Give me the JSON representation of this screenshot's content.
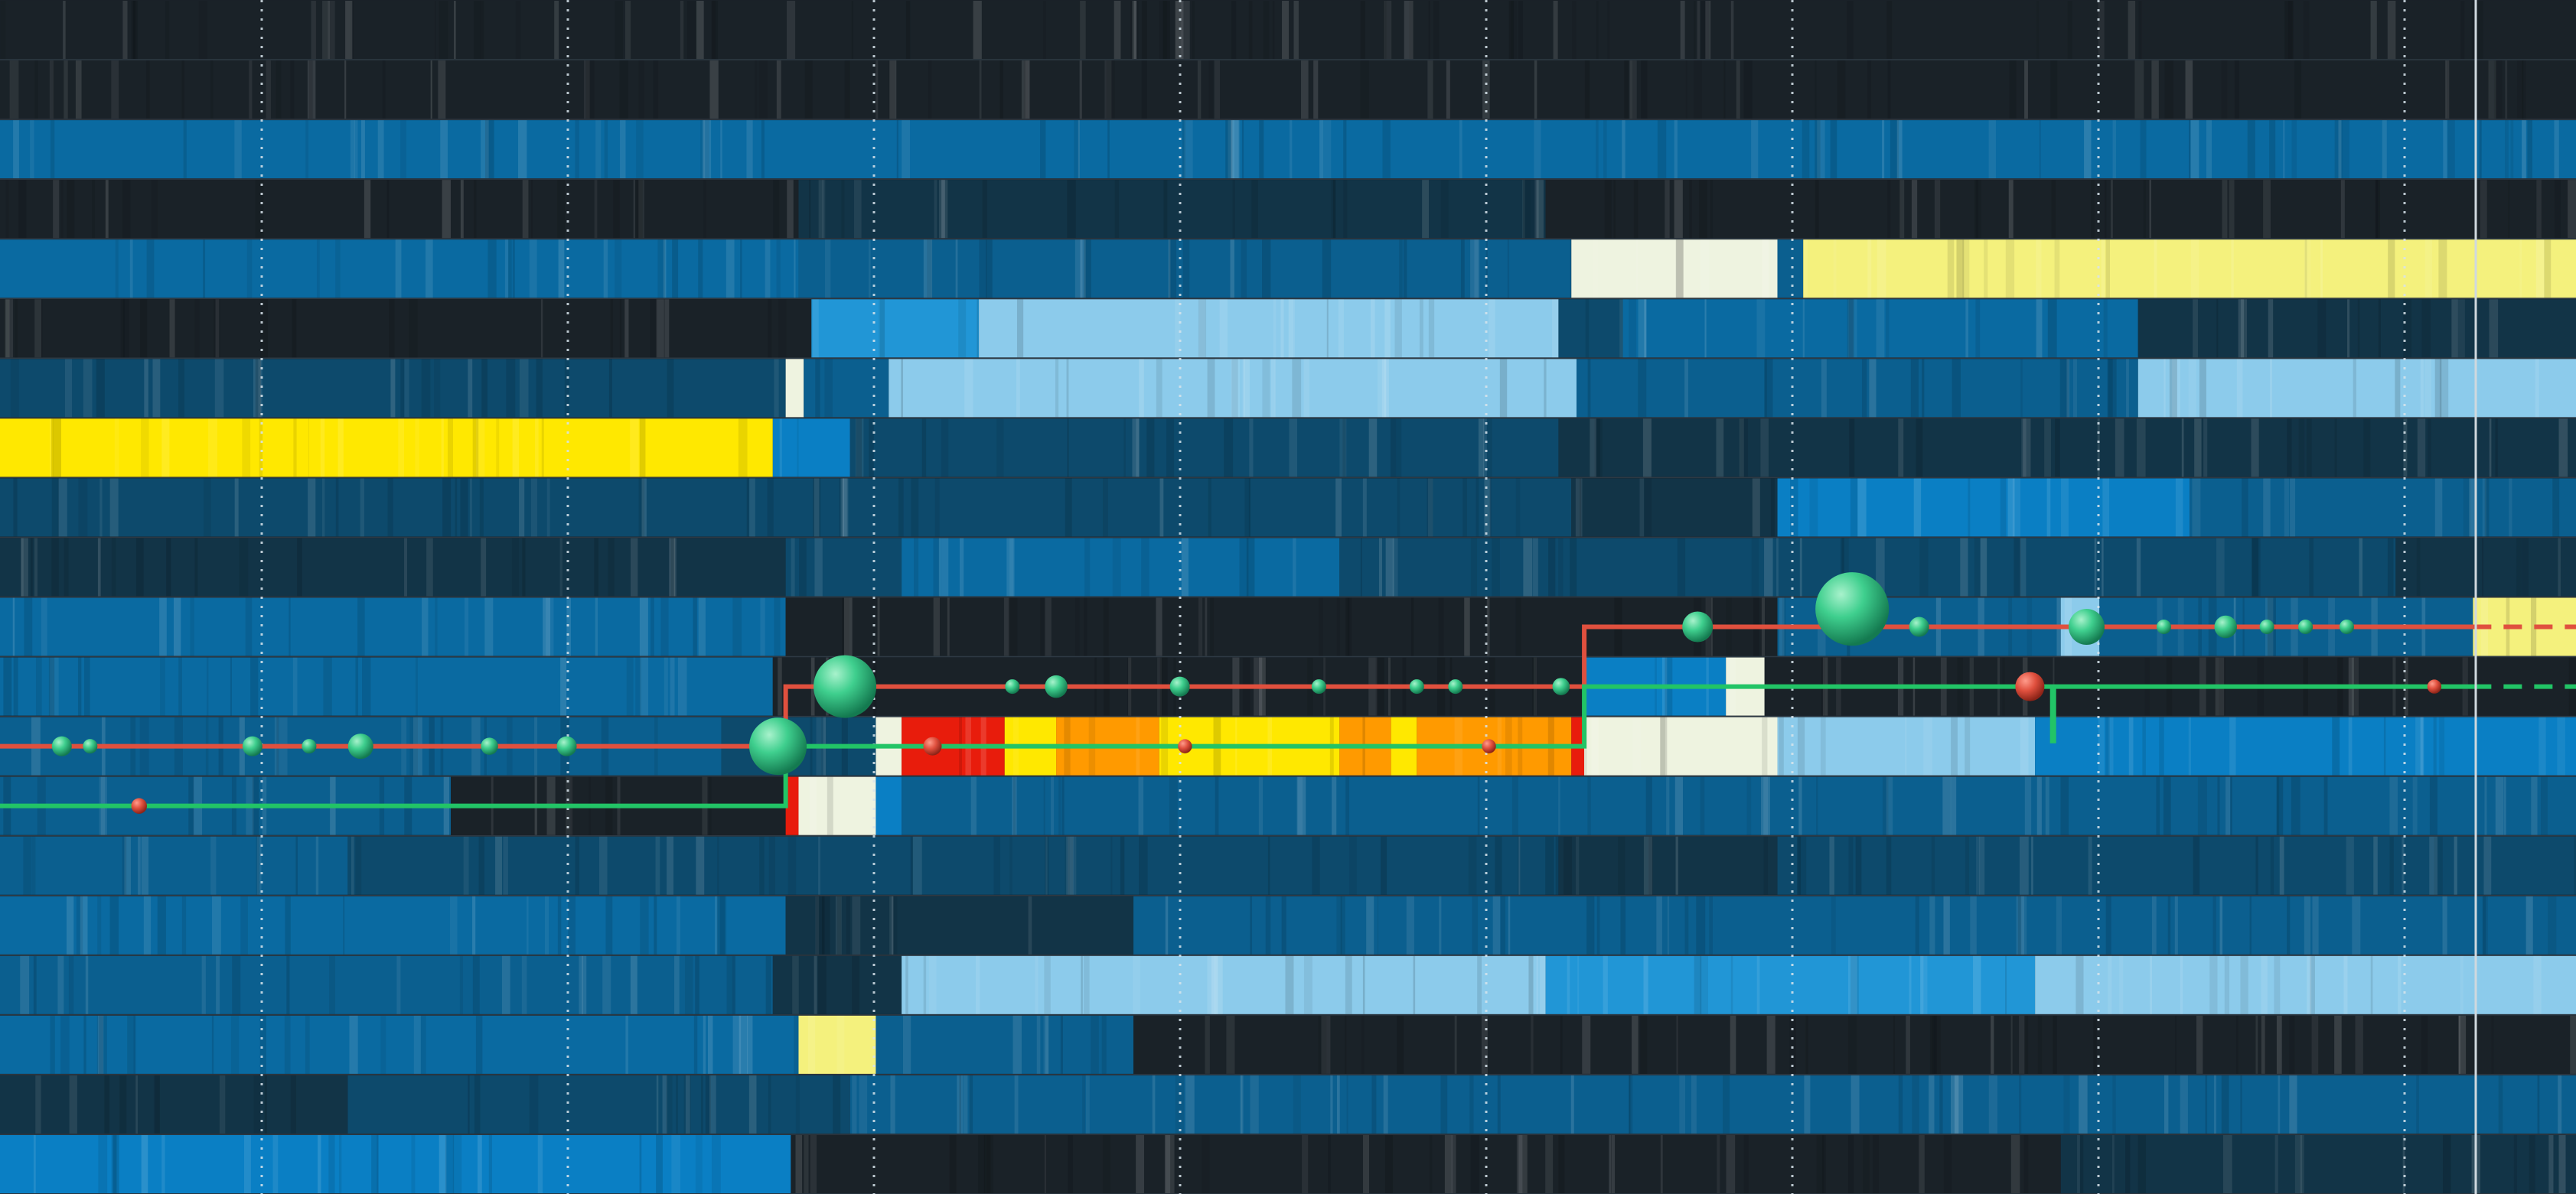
{
  "view": {
    "rows": 20,
    "marker_columns": 9,
    "colors": {
      "background": "#1a2128",
      "dark": "#1a2228",
      "deep": "#123447",
      "navy": "#0d4a6c",
      "mid": "#0b5f8f",
      "blue": "#0a6aa1",
      "bright": "#0a7fc4",
      "azure": "#2196d6",
      "sky": "#8ccbeb",
      "pale": "#eef3e0",
      "yellow": "#f4f17d",
      "gold": "#ffe800",
      "orange": "#ff9a00",
      "red": "#e81c0c",
      "line_red": "#e0503e",
      "line_green": "#22c466",
      "sphere": "#3fcf8e"
    }
  },
  "tracks": [
    {
      "name": "track-1",
      "segments": [
        {
          "from": 0,
          "to": 1,
          "tone": "dark"
        }
      ]
    },
    {
      "name": "track-2",
      "segments": [
        {
          "from": 0,
          "to": 1,
          "tone": "dark"
        }
      ]
    },
    {
      "name": "track-3",
      "segments": [
        {
          "from": 0,
          "to": 1,
          "tone": "blue"
        }
      ]
    },
    {
      "name": "track-4",
      "segments": [
        {
          "from": 0,
          "to": 0.31,
          "tone": "dark"
        },
        {
          "from": 0.31,
          "to": 0.6,
          "tone": "deep"
        },
        {
          "from": 0.6,
          "to": 1,
          "tone": "dark"
        }
      ]
    },
    {
      "name": "track-5",
      "segments": [
        {
          "from": 0,
          "to": 0.31,
          "tone": "blue"
        },
        {
          "from": 0.31,
          "to": 0.61,
          "tone": "mid"
        },
        {
          "from": 0.61,
          "to": 0.69,
          "tone": "pale"
        },
        {
          "from": 0.69,
          "to": 0.7,
          "tone": "mid"
        },
        {
          "from": 0.7,
          "to": 1,
          "tone": "yellow"
        }
      ]
    },
    {
      "name": "track-6",
      "segments": [
        {
          "from": 0,
          "to": 0.315,
          "tone": "dark"
        },
        {
          "from": 0.315,
          "to": 0.38,
          "tone": "azure"
        },
        {
          "from": 0.38,
          "to": 0.605,
          "tone": "sky"
        },
        {
          "from": 0.605,
          "to": 0.63,
          "tone": "navy"
        },
        {
          "from": 0.63,
          "to": 0.83,
          "tone": "blue"
        },
        {
          "from": 0.83,
          "to": 1,
          "tone": "deep"
        }
      ]
    },
    {
      "name": "track-7",
      "segments": [
        {
          "from": 0,
          "to": 0.305,
          "tone": "navy"
        },
        {
          "from": 0.305,
          "to": 0.312,
          "tone": "pale"
        },
        {
          "from": 0.312,
          "to": 0.345,
          "tone": "mid"
        },
        {
          "from": 0.345,
          "to": 0.612,
          "tone": "sky"
        },
        {
          "from": 0.612,
          "to": 0.83,
          "tone": "mid"
        },
        {
          "from": 0.83,
          "to": 1,
          "tone": "sky"
        }
      ]
    },
    {
      "name": "track-8",
      "segments": [
        {
          "from": 0,
          "to": 0.12,
          "tone": "gold"
        },
        {
          "from": 0.12,
          "to": 0.3,
          "tone": "gold"
        },
        {
          "from": 0.3,
          "to": 0.33,
          "tone": "bright"
        },
        {
          "from": 0.33,
          "to": 0.605,
          "tone": "navy"
        },
        {
          "from": 0.605,
          "to": 1,
          "tone": "deep"
        }
      ]
    },
    {
      "name": "track-9",
      "segments": [
        {
          "from": 0,
          "to": 0.61,
          "tone": "navy"
        },
        {
          "from": 0.61,
          "to": 0.69,
          "tone": "deep"
        },
        {
          "from": 0.69,
          "to": 0.85,
          "tone": "bright"
        },
        {
          "from": 0.85,
          "to": 1,
          "tone": "mid"
        }
      ]
    },
    {
      "name": "track-10",
      "segments": [
        {
          "from": 0,
          "to": 0.305,
          "tone": "deep"
        },
        {
          "from": 0.305,
          "to": 0.35,
          "tone": "navy"
        },
        {
          "from": 0.35,
          "to": 0.52,
          "tone": "blue"
        },
        {
          "from": 0.52,
          "to": 0.93,
          "tone": "navy"
        },
        {
          "from": 0.93,
          "to": 1,
          "tone": "deep"
        }
      ]
    },
    {
      "name": "track-11",
      "segments": [
        {
          "from": 0,
          "to": 0.305,
          "tone": "blue"
        },
        {
          "from": 0.305,
          "to": 0.69,
          "tone": "dark"
        },
        {
          "from": 0.69,
          "to": 0.8,
          "tone": "mid"
        },
        {
          "from": 0.8,
          "to": 0.815,
          "tone": "sky"
        },
        {
          "from": 0.815,
          "to": 0.96,
          "tone": "mid"
        },
        {
          "from": 0.96,
          "to": 1,
          "tone": "yellow"
        }
      ]
    },
    {
      "name": "track-12",
      "segments": [
        {
          "from": 0,
          "to": 0.3,
          "tone": "blue"
        },
        {
          "from": 0.3,
          "to": 0.615,
          "tone": "dark"
        },
        {
          "from": 0.615,
          "to": 0.67,
          "tone": "bright"
        },
        {
          "from": 0.67,
          "to": 0.685,
          "tone": "pale"
        },
        {
          "from": 0.685,
          "to": 1,
          "tone": "dark"
        }
      ]
    },
    {
      "name": "track-13",
      "segments": [
        {
          "from": 0,
          "to": 0.28,
          "tone": "mid"
        },
        {
          "from": 0.28,
          "to": 0.34,
          "tone": "navy"
        },
        {
          "from": 0.34,
          "to": 0.35,
          "tone": "pale"
        },
        {
          "from": 0.35,
          "to": 0.39,
          "tone": "red"
        },
        {
          "from": 0.39,
          "to": 0.41,
          "tone": "gold"
        },
        {
          "from": 0.41,
          "to": 0.45,
          "tone": "orange"
        },
        {
          "from": 0.45,
          "to": 0.52,
          "tone": "gold"
        },
        {
          "from": 0.52,
          "to": 0.54,
          "tone": "orange"
        },
        {
          "from": 0.54,
          "to": 0.55,
          "tone": "gold"
        },
        {
          "from": 0.55,
          "to": 0.61,
          "tone": "orange"
        },
        {
          "from": 0.61,
          "to": 0.615,
          "tone": "red"
        },
        {
          "from": 0.615,
          "to": 0.69,
          "tone": "pale"
        },
        {
          "from": 0.69,
          "to": 0.79,
          "tone": "sky"
        },
        {
          "from": 0.79,
          "to": 1,
          "tone": "bright"
        }
      ]
    },
    {
      "name": "track-14",
      "segments": [
        {
          "from": 0,
          "to": 0.175,
          "tone": "mid"
        },
        {
          "from": 0.175,
          "to": 0.305,
          "tone": "dark"
        },
        {
          "from": 0.305,
          "to": 0.31,
          "tone": "red"
        },
        {
          "from": 0.31,
          "to": 0.34,
          "tone": "pale"
        },
        {
          "from": 0.34,
          "to": 0.35,
          "tone": "bright"
        },
        {
          "from": 0.35,
          "to": 1,
          "tone": "mid"
        }
      ]
    },
    {
      "name": "track-15",
      "segments": [
        {
          "from": 0,
          "to": 0.135,
          "tone": "mid"
        },
        {
          "from": 0.135,
          "to": 0.605,
          "tone": "navy"
        },
        {
          "from": 0.605,
          "to": 0.69,
          "tone": "deep"
        },
        {
          "from": 0.69,
          "to": 1,
          "tone": "navy"
        }
      ]
    },
    {
      "name": "track-16",
      "segments": [
        {
          "from": 0,
          "to": 0.305,
          "tone": "blue"
        },
        {
          "from": 0.305,
          "to": 0.44,
          "tone": "deep"
        },
        {
          "from": 0.44,
          "to": 0.535,
          "tone": "mid"
        },
        {
          "from": 0.535,
          "to": 1,
          "tone": "mid"
        }
      ]
    },
    {
      "name": "track-17",
      "segments": [
        {
          "from": 0,
          "to": 0.3,
          "tone": "mid"
        },
        {
          "from": 0.3,
          "to": 0.35,
          "tone": "deep"
        },
        {
          "from": 0.35,
          "to": 0.6,
          "tone": "sky"
        },
        {
          "from": 0.6,
          "to": 0.79,
          "tone": "azure"
        },
        {
          "from": 0.79,
          "to": 1,
          "tone": "sky"
        }
      ]
    },
    {
      "name": "track-18",
      "segments": [
        {
          "from": 0,
          "to": 0.31,
          "tone": "blue"
        },
        {
          "from": 0.31,
          "to": 0.34,
          "tone": "yellow"
        },
        {
          "from": 0.34,
          "to": 0.44,
          "tone": "mid"
        },
        {
          "from": 0.44,
          "to": 1,
          "tone": "dark"
        }
      ]
    },
    {
      "name": "track-19",
      "segments": [
        {
          "from": 0,
          "to": 0.135,
          "tone": "deep"
        },
        {
          "from": 0.135,
          "to": 0.33,
          "tone": "navy"
        },
        {
          "from": 0.33,
          "to": 1,
          "tone": "mid"
        }
      ]
    },
    {
      "name": "track-20",
      "segments": [
        {
          "from": 0,
          "to": 0.307,
          "tone": "bright"
        },
        {
          "from": 0.307,
          "to": 0.8,
          "tone": "dark"
        },
        {
          "from": 0.8,
          "to": 1,
          "tone": "deep"
        }
      ]
    }
  ],
  "routes": [
    {
      "name": "red-route",
      "tone": "line_red",
      "points": [
        [
          0,
          12.5
        ],
        [
          0.305,
          12.5
        ],
        [
          0.305,
          11.5
        ],
        [
          0.615,
          11.5
        ],
        [
          0.615,
          10.5
        ],
        [
          0.96,
          10.5
        ]
      ],
      "dashed_after": 0.96
    },
    {
      "name": "green-route",
      "tone": "line_green",
      "points": [
        [
          0,
          13.5
        ],
        [
          0.305,
          13.5
        ],
        [
          0.305,
          12.5
        ],
        [
          0.615,
          12.5
        ],
        [
          0.615,
          11.5
        ],
        [
          0.96,
          11.5
        ]
      ],
      "dashed_after": 0.96
    }
  ],
  "nodes": [
    {
      "name": "node-1",
      "track": 12.5,
      "at": 0.024,
      "size": 2
    },
    {
      "name": "node-2",
      "track": 12.5,
      "at": 0.035,
      "size": 1
    },
    {
      "name": "node-3",
      "track": 12.5,
      "at": 0.098,
      "size": 2
    },
    {
      "name": "node-4",
      "track": 12.5,
      "at": 0.12,
      "size": 1
    },
    {
      "name": "node-5",
      "track": 12.5,
      "at": 0.14,
      "size": 3
    },
    {
      "name": "node-6",
      "track": 12.5,
      "at": 0.19,
      "size": 1.5
    },
    {
      "name": "node-7",
      "track": 12.5,
      "at": 0.22,
      "size": 2
    },
    {
      "name": "node-8",
      "track": 12.5,
      "at": 0.302,
      "size": 9
    },
    {
      "name": "node-9",
      "track": 11.5,
      "at": 0.328,
      "size": 10
    },
    {
      "name": "node-10",
      "track": 11.5,
      "at": 0.393,
      "size": 1
    },
    {
      "name": "node-11",
      "track": 11.5,
      "at": 0.41,
      "size": 2.5
    },
    {
      "name": "node-12",
      "track": 11.5,
      "at": 0.458,
      "size": 2
    },
    {
      "name": "node-13",
      "track": 11.5,
      "at": 0.512,
      "size": 1
    },
    {
      "name": "node-14",
      "track": 11.5,
      "at": 0.55,
      "size": 1
    },
    {
      "name": "node-15",
      "track": 11.5,
      "at": 0.565,
      "size": 1
    },
    {
      "name": "node-16",
      "track": 11.5,
      "at": 0.606,
      "size": 1.5
    },
    {
      "name": "node-17",
      "track": 10.5,
      "at": 0.659,
      "size": 4
    },
    {
      "name": "node-18",
      "track": 10.2,
      "at": 0.719,
      "size": 12
    },
    {
      "name": "node-19",
      "track": 10.5,
      "at": 0.745,
      "size": 2
    },
    {
      "name": "node-20",
      "track": 10.5,
      "at": 0.81,
      "size": 5
    },
    {
      "name": "node-21",
      "track": 10.5,
      "at": 0.84,
      "size": 1
    },
    {
      "name": "node-22",
      "track": 10.5,
      "at": 0.864,
      "size": 2.5
    },
    {
      "name": "node-23",
      "track": 10.5,
      "at": 0.88,
      "size": 1
    },
    {
      "name": "node-24",
      "track": 10.5,
      "at": 0.895,
      "size": 1
    },
    {
      "name": "node-25",
      "track": 10.5,
      "at": 0.911,
      "size": 1
    }
  ],
  "alerts": [
    {
      "name": "alert-1",
      "track": 13.5,
      "at": 0.054,
      "size": 1.5
    },
    {
      "name": "alert-2",
      "track": 12.5,
      "at": 0.362,
      "size": 2
    },
    {
      "name": "alert-3",
      "track": 12.5,
      "at": 0.46,
      "size": 1.2
    },
    {
      "name": "alert-4",
      "track": 12.5,
      "at": 0.578,
      "size": 1.2
    },
    {
      "name": "alert-5",
      "track": 11.5,
      "at": 0.788,
      "size": 4
    },
    {
      "name": "alert-6",
      "track": 11.5,
      "at": 0.945,
      "size": 1.2
    }
  ]
}
